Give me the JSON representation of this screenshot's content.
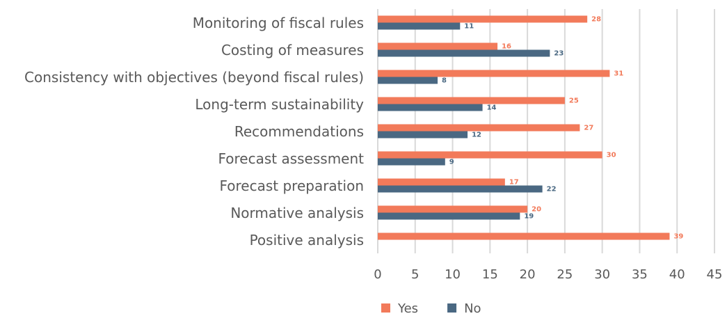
{
  "chart_data": {
    "type": "bar",
    "orientation": "horizontal",
    "categories": [
      "Monitoring of fiscal rules",
      "Costing of measures",
      "Consistency with objectives (beyond fiscal rules)",
      "Long-term sustainability",
      "Recommendations",
      "Forecast assessment",
      "Forecast preparation",
      "Normative analysis",
      "Positive analysis"
    ],
    "series": [
      {
        "name": "Yes",
        "color": "#f27a5a",
        "values": [
          28,
          16,
          31,
          25,
          27,
          30,
          17,
          20,
          39
        ]
      },
      {
        "name": "No",
        "color": "#4a6882",
        "values": [
          11,
          23,
          8,
          14,
          12,
          9,
          22,
          19,
          null
        ]
      }
    ],
    "xlim": [
      0,
      45
    ],
    "xticks": [
      0,
      5,
      10,
      15,
      20,
      25,
      30,
      35,
      40,
      45
    ],
    "grid": true,
    "legend": "bottom"
  }
}
